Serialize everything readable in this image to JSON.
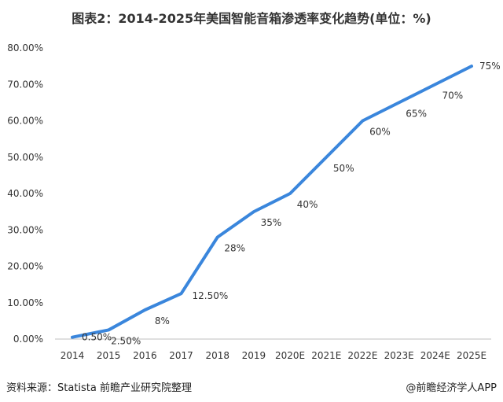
{
  "title": "图表2：2014-2025年美国智能音箱渗透率变化趋势(单位：%)",
  "footer": {
    "source": "资料来源：Statista 前瞻产业研究院整理",
    "credit": "@前瞻经济学人APP"
  },
  "chart_data": {
    "type": "line",
    "title": "图表2：2014-2025年美国智能音箱渗透率变化趋势(单位：%)",
    "categories": [
      "2014",
      "2015",
      "2016",
      "2017",
      "2018",
      "2019",
      "2020E",
      "2021E",
      "2022E",
      "2023E",
      "2024E",
      "2025E"
    ],
    "values": [
      0.5,
      2.5,
      8,
      12.5,
      28,
      35,
      40,
      50,
      60,
      65,
      70,
      75
    ],
    "data_labels": [
      "0.50%",
      "2.50%",
      "8%",
      "12.50%",
      "28%",
      "35%",
      "40%",
      "50%",
      "60%",
      "65%",
      "70%",
      "75%"
    ],
    "y_ticks": [
      "0.00%",
      "10.00%",
      "20.00%",
      "30.00%",
      "40.00%",
      "50.00%",
      "60.00%",
      "70.00%",
      "80.00%"
    ],
    "ylim": [
      0,
      80
    ],
    "line_color": "#3a86dc",
    "grid": false,
    "legend": "none"
  }
}
